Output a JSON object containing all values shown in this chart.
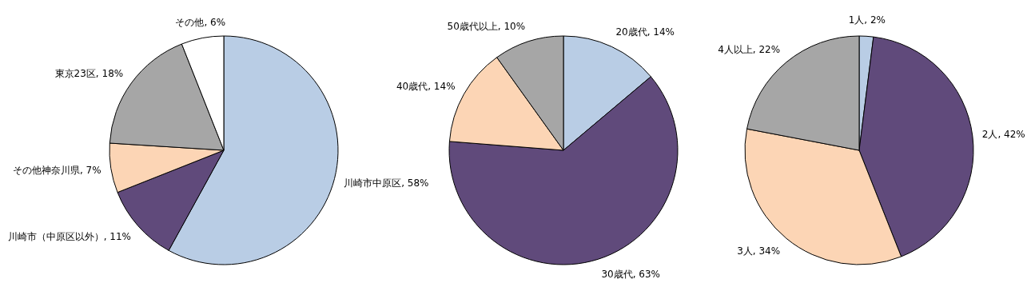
{
  "chart_data": [
    {
      "type": "pie",
      "categories": [
        "川崎市中原区",
        "川崎市（中原区以外）",
        "その他神奈川県",
        "東京23区",
        "その他"
      ],
      "values": [
        58,
        11,
        7,
        18,
        6
      ],
      "value_labels": [
        "58%",
        "11%",
        "7%",
        "18%",
        "6%"
      ],
      "colors": [
        "#b9cde5",
        "#604a7b",
        "#fcd5b5",
        "#a6a6a6",
        "#ffffff"
      ]
    },
    {
      "type": "pie",
      "categories": [
        "20歳代",
        "30歳代",
        "40歳代",
        "50歳代以上"
      ],
      "values": [
        14,
        63,
        14,
        10
      ],
      "value_labels": [
        "14%",
        "63%",
        "14%",
        "10%"
      ],
      "colors": [
        "#b9cde5",
        "#604a7b",
        "#fcd5b5",
        "#a6a6a6"
      ]
    },
    {
      "type": "pie",
      "categories": [
        "1人",
        "2人",
        "3人",
        "4人以上"
      ],
      "values": [
        2,
        42,
        34,
        22
      ],
      "value_labels": [
        "2%",
        "42%",
        "34%",
        "22%"
      ],
      "colors": [
        "#b9cde5",
        "#604a7b",
        "#fcd5b5",
        "#a6a6a6"
      ]
    }
  ]
}
